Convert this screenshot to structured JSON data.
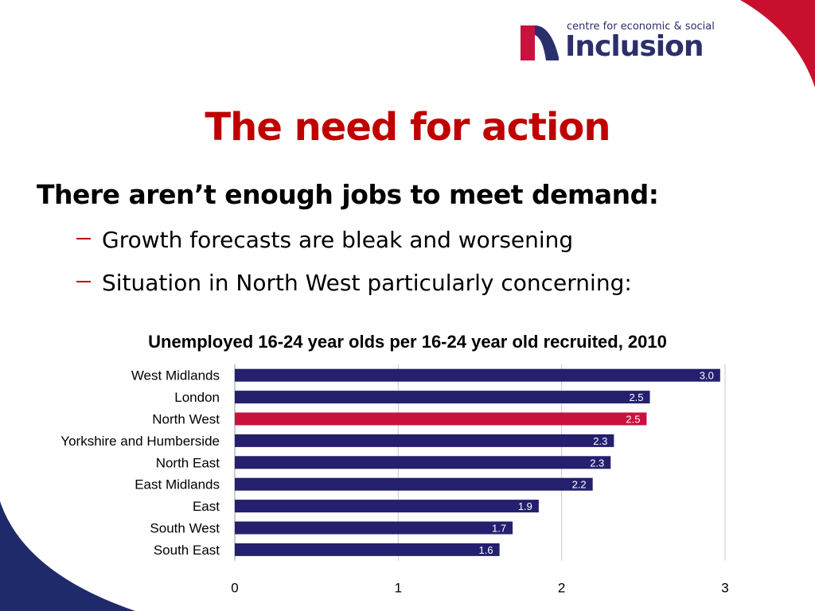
{
  "logo": {
    "small_text": "centre for economic & social",
    "big_text": "Inclusion"
  },
  "slide": {
    "title": "The need for action",
    "heading": "There aren’t enough jobs to meet demand:",
    "bullets": [
      "Growth forecasts are bleak and worsening",
      "Situation in North West particularly concerning:"
    ]
  },
  "colors": {
    "title_red": "#c00000",
    "bar_navy": "#24206e",
    "bar_highlight": "#c8123e",
    "swoosh_red": "#c8102e",
    "swoosh_navy": "#1f2a6b"
  },
  "chart_data": {
    "type": "bar",
    "orientation": "horizontal",
    "title": "Unemployed 16-24 year olds per 16-24 year old recruited, 2010",
    "categories": [
      "West Midlands",
      "London",
      "North West",
      "Yorkshire and Humberside",
      "North East",
      "East Midlands",
      "East",
      "South West",
      "South East"
    ],
    "values": [
      2.97,
      2.54,
      2.52,
      2.32,
      2.3,
      2.19,
      1.86,
      1.7,
      1.62
    ],
    "data_labels": [
      "3.0",
      "2.5",
      "2.5",
      "2.3",
      "2.3",
      "2.2",
      "1.9",
      "1.7",
      "1.6"
    ],
    "highlight": [
      "North West"
    ],
    "xlim": [
      0,
      3
    ],
    "x_ticks": [
      "0",
      "1",
      "2",
      "3"
    ],
    "grid": true
  }
}
